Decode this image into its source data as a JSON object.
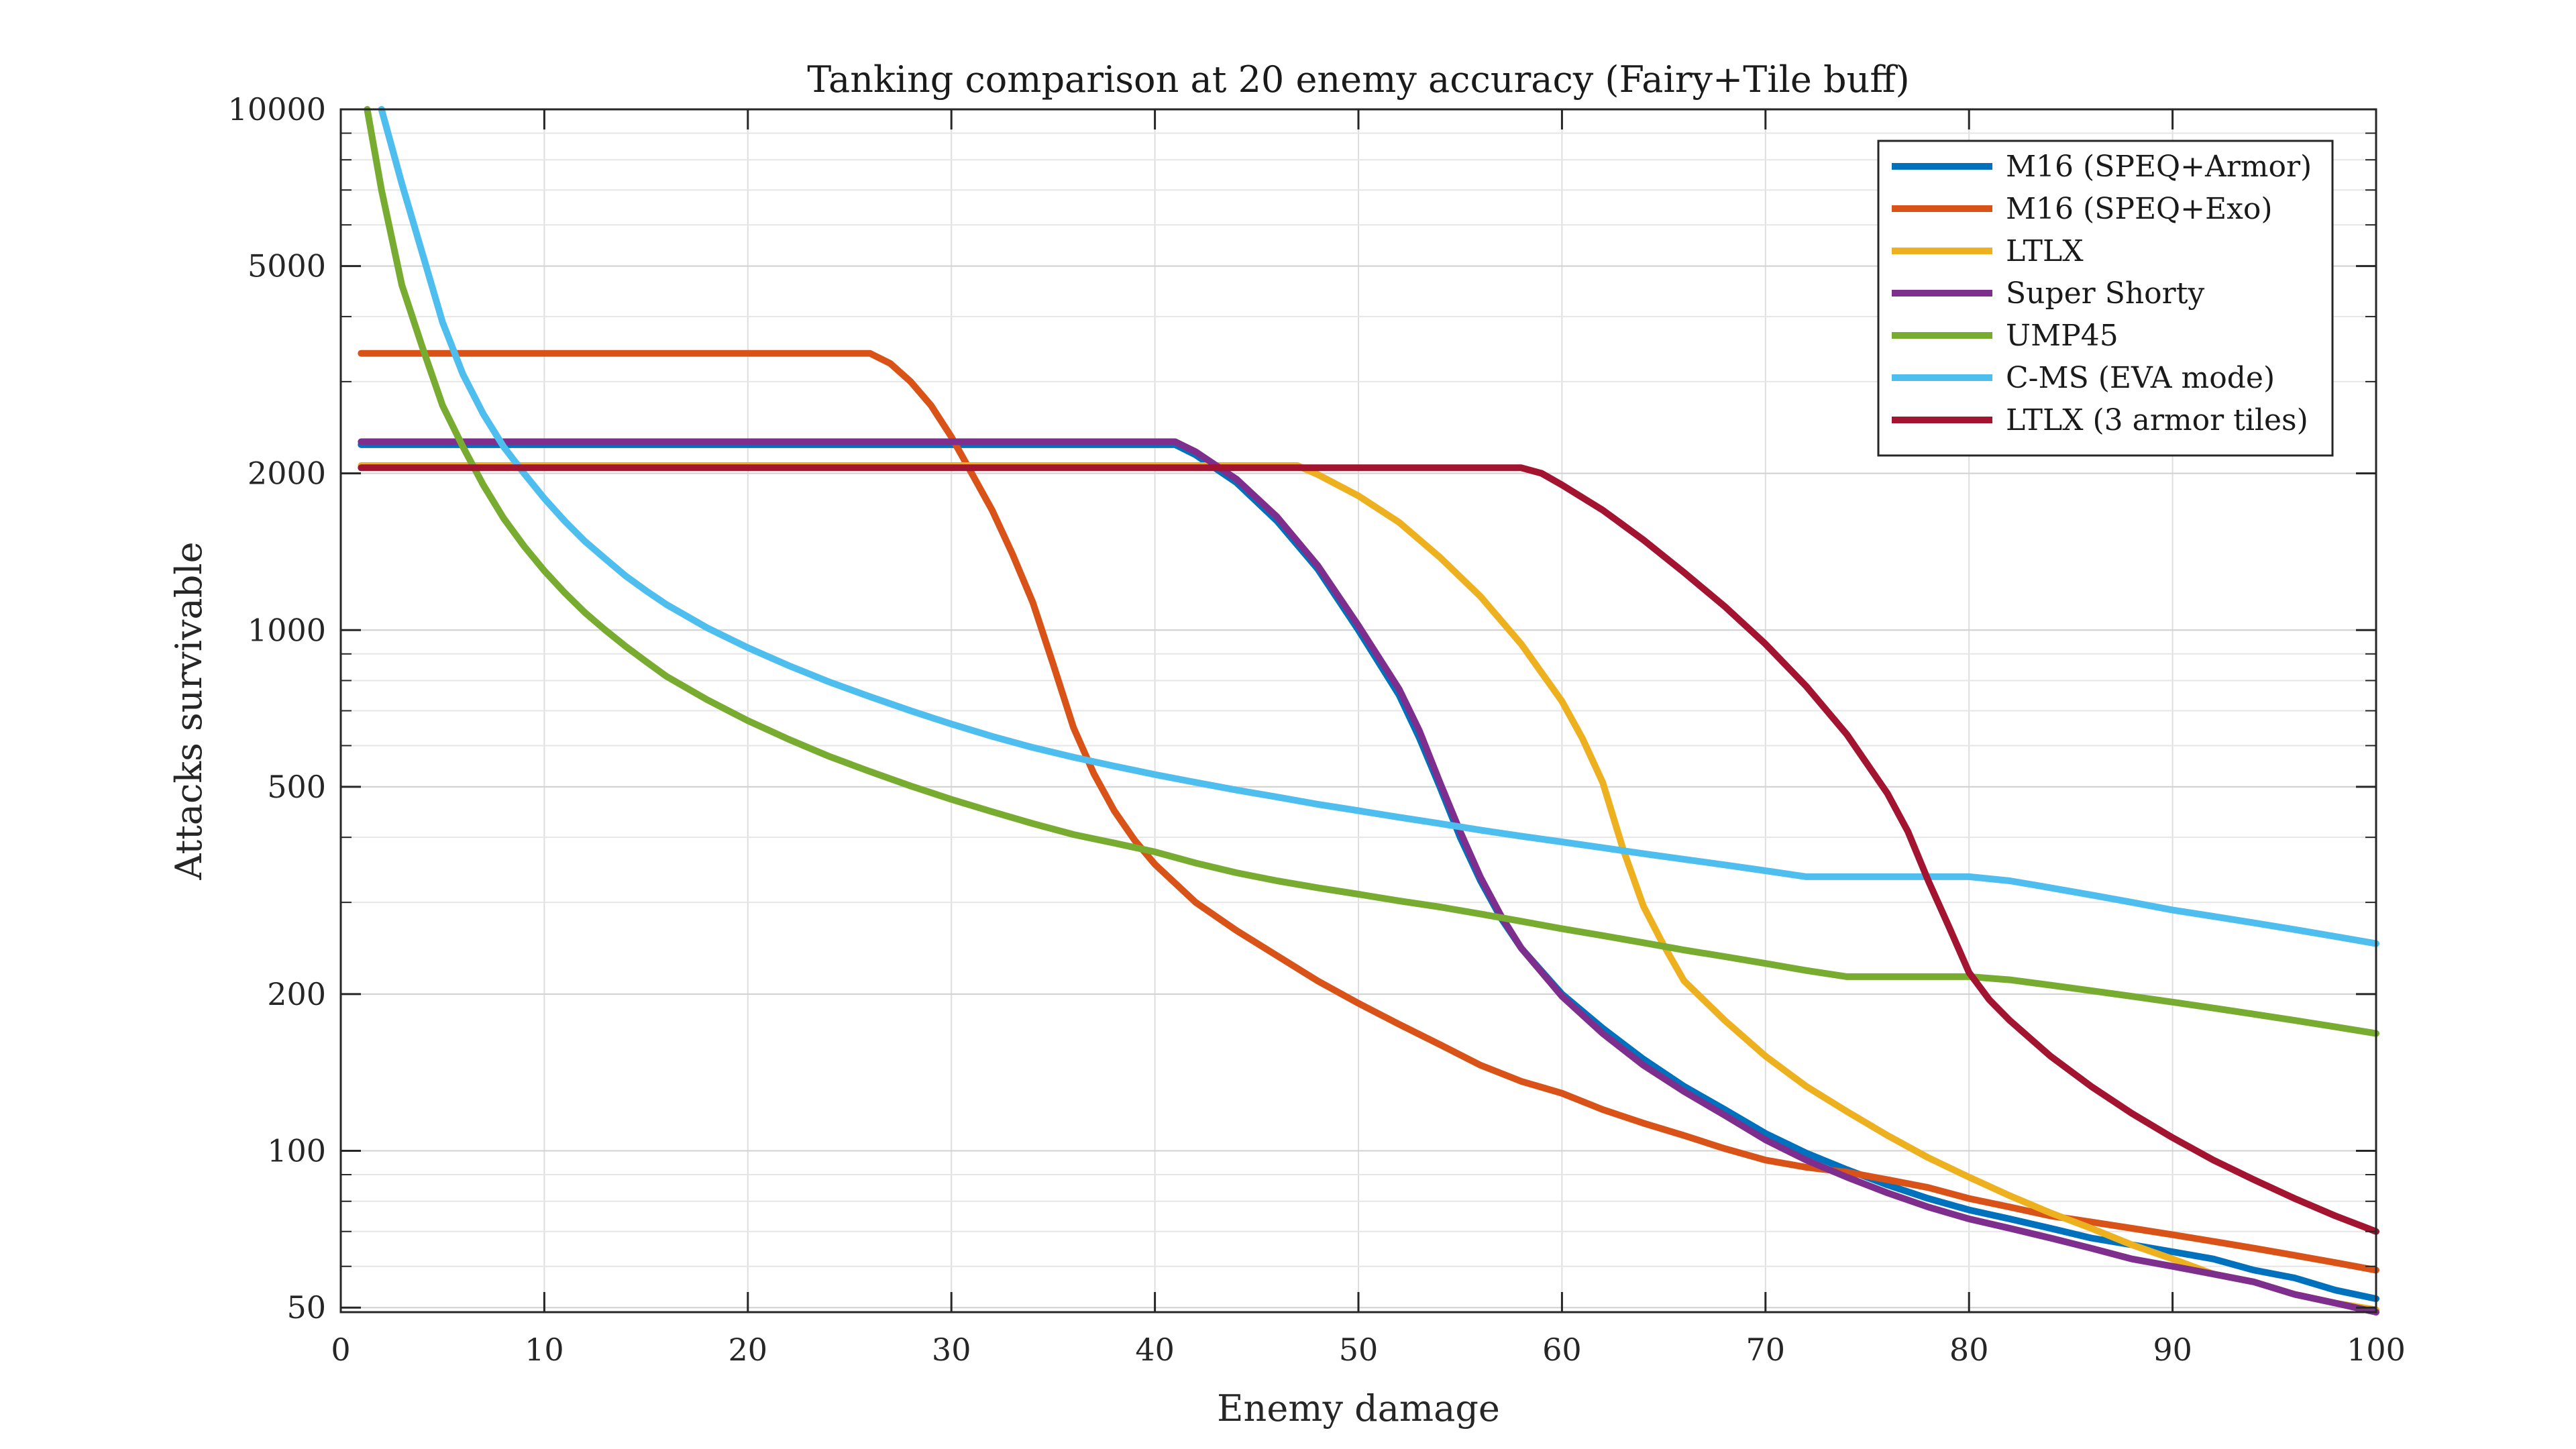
{
  "chart_data": {
    "type": "line",
    "title": "Tanking comparison at 20 enemy accuracy (Fairy+Tile buff)",
    "xlabel": "Enemy damage",
    "ylabel": "Attacks survivable",
    "xlim": [
      0,
      100
    ],
    "ylim": [
      49,
      10000
    ],
    "yscale": "log",
    "grid": true,
    "legend_position": "top-right",
    "x_ticks": [
      0,
      10,
      20,
      30,
      40,
      50,
      60,
      70,
      80,
      90,
      100
    ],
    "x_tick_labels": [
      "0",
      "10",
      "20",
      "30",
      "40",
      "50",
      "60",
      "70",
      "80",
      "90",
      "100"
    ],
    "y_ticks": [
      50,
      100,
      200,
      500,
      1000,
      2000,
      5000,
      10000
    ],
    "y_tick_labels": [
      "50",
      "100",
      "200",
      "500",
      "1000",
      "2000",
      "5000",
      "10000"
    ],
    "series": [
      {
        "name": "M16 (SPEQ+Armor)",
        "color": "#0072BD",
        "points": [
          [
            1,
            2270
          ],
          [
            41,
            2270
          ],
          [
            42,
            2170
          ],
          [
            44,
            1920
          ],
          [
            46,
            1620
          ],
          [
            48,
            1310
          ],
          [
            50,
            1000
          ],
          [
            52,
            750
          ],
          [
            53,
            620
          ],
          [
            54,
            500
          ],
          [
            55,
            400
          ],
          [
            56,
            330
          ],
          [
            57,
            280
          ],
          [
            58,
            245
          ],
          [
            60,
            200
          ],
          [
            62,
            172
          ],
          [
            64,
            150
          ],
          [
            66,
            133
          ],
          [
            68,
            120
          ],
          [
            70,
            108
          ],
          [
            72,
            99
          ],
          [
            74,
            92
          ],
          [
            76,
            86
          ],
          [
            78,
            81
          ],
          [
            80,
            77
          ],
          [
            82,
            74
          ],
          [
            84,
            71
          ],
          [
            86,
            68
          ],
          [
            88,
            66
          ],
          [
            90,
            64
          ],
          [
            92,
            62
          ],
          [
            94,
            59
          ],
          [
            96,
            57
          ],
          [
            98,
            54
          ],
          [
            100,
            52
          ]
        ]
      },
      {
        "name": "M16 (SPEQ+Exo)",
        "color": "#D95319",
        "points": [
          [
            1,
            3400
          ],
          [
            26,
            3400
          ],
          [
            27,
            3250
          ],
          [
            28,
            3000
          ],
          [
            29,
            2700
          ],
          [
            30,
            2350
          ],
          [
            31,
            2000
          ],
          [
            32,
            1700
          ],
          [
            33,
            1400
          ],
          [
            34,
            1130
          ],
          [
            35,
            860
          ],
          [
            36,
            650
          ],
          [
            37,
            530
          ],
          [
            38,
            450
          ],
          [
            39,
            395
          ],
          [
            40,
            355
          ],
          [
            42,
            300
          ],
          [
            44,
            265
          ],
          [
            46,
            237
          ],
          [
            48,
            212
          ],
          [
            50,
            192
          ],
          [
            52,
            175
          ],
          [
            54,
            160
          ],
          [
            56,
            146
          ],
          [
            58,
            136
          ],
          [
            60,
            129
          ],
          [
            62,
            120
          ],
          [
            64,
            113
          ],
          [
            66,
            107
          ],
          [
            68,
            101
          ],
          [
            70,
            96
          ],
          [
            72,
            93
          ],
          [
            74,
            91
          ],
          [
            76,
            88
          ],
          [
            78,
            85
          ],
          [
            80,
            81
          ],
          [
            82,
            78
          ],
          [
            84,
            75
          ],
          [
            86,
            73
          ],
          [
            88,
            71
          ],
          [
            90,
            69
          ],
          [
            92,
            67
          ],
          [
            94,
            65
          ],
          [
            96,
            63
          ],
          [
            98,
            61
          ],
          [
            100,
            59
          ]
        ]
      },
      {
        "name": "LTLX",
        "color": "#EDB120",
        "points": [
          [
            1,
            2070
          ],
          [
            47,
            2070
          ],
          [
            48,
            1990
          ],
          [
            50,
            1810
          ],
          [
            52,
            1610
          ],
          [
            54,
            1380
          ],
          [
            56,
            1160
          ],
          [
            58,
            940
          ],
          [
            60,
            730
          ],
          [
            61,
            620
          ],
          [
            62,
            510
          ],
          [
            63,
            380
          ],
          [
            64,
            295
          ],
          [
            65,
            248
          ],
          [
            66,
            212
          ],
          [
            68,
            178
          ],
          [
            70,
            152
          ],
          [
            72,
            133
          ],
          [
            74,
            119
          ],
          [
            76,
            107
          ],
          [
            78,
            97
          ],
          [
            80,
            89
          ],
          [
            82,
            82
          ],
          [
            84,
            76
          ],
          [
            86,
            71
          ],
          [
            88,
            66
          ],
          [
            90,
            62
          ],
          [
            92,
            58
          ],
          [
            94,
            56
          ],
          [
            96,
            53
          ],
          [
            98,
            51
          ],
          [
            100,
            49.5
          ]
        ]
      },
      {
        "name": "Super Shorty",
        "color": "#7E2F8E",
        "points": [
          [
            1,
            2300
          ],
          [
            41,
            2300
          ],
          [
            42,
            2200
          ],
          [
            44,
            1950
          ],
          [
            46,
            1650
          ],
          [
            48,
            1330
          ],
          [
            50,
            1020
          ],
          [
            52,
            770
          ],
          [
            53,
            640
          ],
          [
            54,
            510
          ],
          [
            55,
            410
          ],
          [
            56,
            335
          ],
          [
            57,
            283
          ],
          [
            58,
            245
          ],
          [
            60,
            198
          ],
          [
            62,
            168
          ],
          [
            64,
            146
          ],
          [
            66,
            130
          ],
          [
            68,
            117
          ],
          [
            70,
            105
          ],
          [
            72,
            96
          ],
          [
            74,
            89
          ],
          [
            76,
            83
          ],
          [
            78,
            78
          ],
          [
            80,
            74
          ],
          [
            82,
            71
          ],
          [
            84,
            68
          ],
          [
            86,
            65
          ],
          [
            88,
            62
          ],
          [
            90,
            60
          ],
          [
            92,
            58
          ],
          [
            94,
            56
          ],
          [
            96,
            53
          ],
          [
            98,
            51
          ],
          [
            100,
            49
          ]
        ]
      },
      {
        "name": "UMP45",
        "color": "#77AC30",
        "points": [
          [
            1.3,
            10000
          ],
          [
            2,
            7000
          ],
          [
            3,
            4600
          ],
          [
            4,
            3500
          ],
          [
            5,
            2700
          ],
          [
            6,
            2250
          ],
          [
            7,
            1900
          ],
          [
            8,
            1640
          ],
          [
            9,
            1450
          ],
          [
            10,
            1300
          ],
          [
            11,
            1180
          ],
          [
            12,
            1080
          ],
          [
            13,
            1000
          ],
          [
            14,
            930
          ],
          [
            15,
            870
          ],
          [
            16,
            815
          ],
          [
            18,
            735
          ],
          [
            20,
            670
          ],
          [
            22,
            617
          ],
          [
            24,
            572
          ],
          [
            26,
            535
          ],
          [
            28,
            502
          ],
          [
            30,
            473
          ],
          [
            32,
            448
          ],
          [
            34,
            425
          ],
          [
            36,
            405
          ],
          [
            38,
            390
          ],
          [
            40,
            375
          ],
          [
            42,
            357
          ],
          [
            44,
            342
          ],
          [
            46,
            330
          ],
          [
            48,
            320
          ],
          [
            50,
            311
          ],
          [
            52,
            302
          ],
          [
            54,
            294
          ],
          [
            56,
            285
          ],
          [
            58,
            276
          ],
          [
            60,
            267
          ],
          [
            62,
            259
          ],
          [
            64,
            251
          ],
          [
            66,
            243
          ],
          [
            68,
            236
          ],
          [
            70,
            229
          ],
          [
            72,
            222
          ],
          [
            74,
            216
          ],
          [
            76,
            216
          ],
          [
            78,
            216
          ],
          [
            80,
            216
          ],
          [
            82,
            213
          ],
          [
            84,
            208
          ],
          [
            86,
            203
          ],
          [
            88,
            198
          ],
          [
            90,
            193
          ],
          [
            92,
            188
          ],
          [
            94,
            183
          ],
          [
            96,
            178
          ],
          [
            98,
            173
          ],
          [
            100,
            168
          ]
        ]
      },
      {
        "name": "C-MS (EVA mode)",
        "color": "#4DBEEE",
        "points": [
          [
            2,
            10000
          ],
          [
            3,
            7200
          ],
          [
            4,
            5300
          ],
          [
            5,
            3900
          ],
          [
            6,
            3100
          ],
          [
            7,
            2600
          ],
          [
            8,
            2250
          ],
          [
            9,
            2000
          ],
          [
            10,
            1790
          ],
          [
            11,
            1620
          ],
          [
            12,
            1480
          ],
          [
            13,
            1370
          ],
          [
            14,
            1270
          ],
          [
            15,
            1190
          ],
          [
            16,
            1120
          ],
          [
            18,
            1010
          ],
          [
            20,
            925
          ],
          [
            22,
            855
          ],
          [
            24,
            795
          ],
          [
            26,
            745
          ],
          [
            28,
            700
          ],
          [
            30,
            660
          ],
          [
            32,
            625
          ],
          [
            34,
            595
          ],
          [
            36,
            570
          ],
          [
            38,
            548
          ],
          [
            40,
            528
          ],
          [
            42,
            510
          ],
          [
            44,
            493
          ],
          [
            46,
            478
          ],
          [
            48,
            463
          ],
          [
            50,
            450
          ],
          [
            52,
            437
          ],
          [
            54,
            425
          ],
          [
            56,
            413
          ],
          [
            58,
            402
          ],
          [
            60,
            392
          ],
          [
            62,
            382
          ],
          [
            64,
            372
          ],
          [
            66,
            363
          ],
          [
            68,
            354
          ],
          [
            70,
            345
          ],
          [
            72,
            336
          ],
          [
            74,
            336
          ],
          [
            76,
            336
          ],
          [
            78,
            336
          ],
          [
            80,
            336
          ],
          [
            82,
            330
          ],
          [
            84,
            320
          ],
          [
            86,
            310
          ],
          [
            88,
            300
          ],
          [
            90,
            290
          ],
          [
            92,
            282
          ],
          [
            94,
            274
          ],
          [
            96,
            266
          ],
          [
            98,
            258
          ],
          [
            100,
            250
          ]
        ]
      },
      {
        "name": "LTLX (3 armor tiles)",
        "color": "#A2142F",
        "points": [
          [
            1,
            2050
          ],
          [
            58,
            2050
          ],
          [
            59,
            2000
          ],
          [
            60,
            1900
          ],
          [
            62,
            1700
          ],
          [
            64,
            1490
          ],
          [
            66,
            1290
          ],
          [
            68,
            1110
          ],
          [
            70,
            940
          ],
          [
            72,
            780
          ],
          [
            74,
            630
          ],
          [
            76,
            485
          ],
          [
            77,
            410
          ],
          [
            78,
            330
          ],
          [
            79,
            270
          ],
          [
            80,
            220
          ],
          [
            81,
            195
          ],
          [
            82,
            178
          ],
          [
            84,
            152
          ],
          [
            86,
            133
          ],
          [
            88,
            118
          ],
          [
            90,
            106
          ],
          [
            92,
            96
          ],
          [
            94,
            88
          ],
          [
            96,
            81
          ],
          [
            98,
            75
          ],
          [
            100,
            70
          ]
        ]
      }
    ]
  }
}
